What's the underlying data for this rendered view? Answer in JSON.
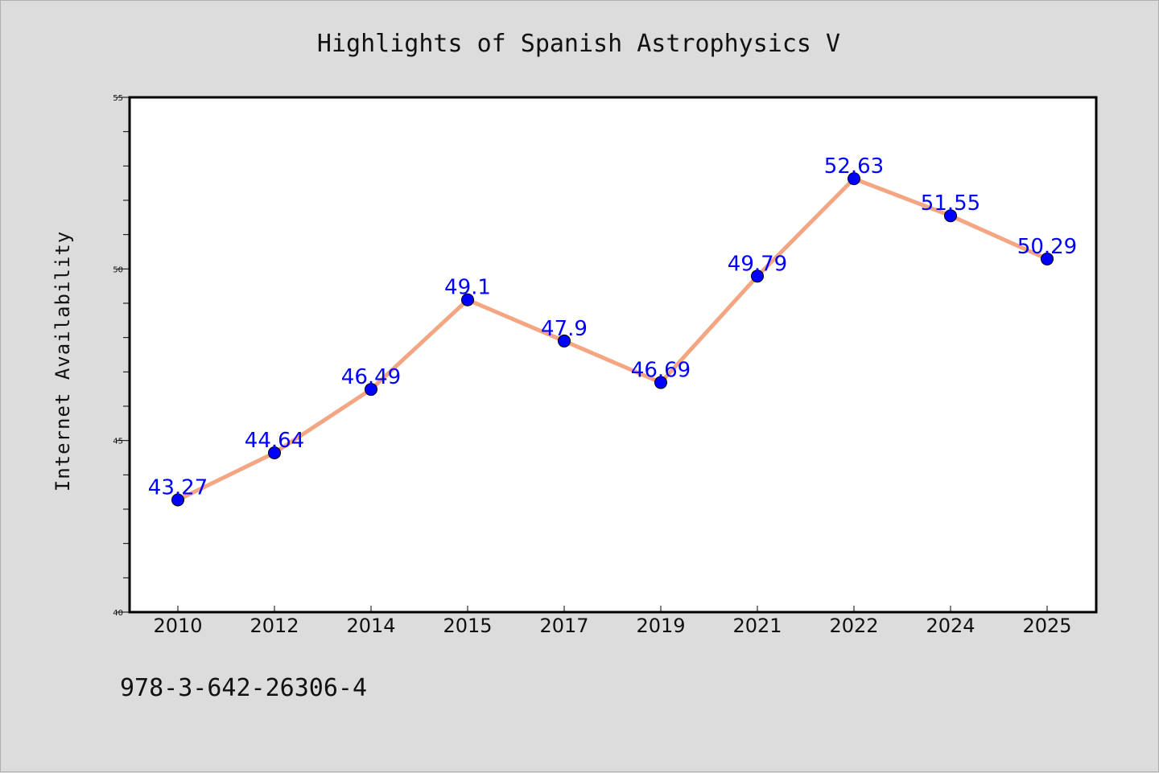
{
  "chart_data": {
    "type": "line",
    "title": "Highlights of Spanish Astrophysics V",
    "xlabel": "",
    "ylabel": "Internet Availability",
    "categories": [
      "2010",
      "2012",
      "2014",
      "2015",
      "2017",
      "2019",
      "2021",
      "2022",
      "2024",
      "2025"
    ],
    "series": [
      {
        "values": [
          43.27,
          44.64,
          46.49,
          49.1,
          47.9,
          46.69,
          49.79,
          52.63,
          51.55,
          50.29
        ],
        "data_labels": [
          "43.27",
          "44.64",
          "46.49",
          "49.1",
          "47.9",
          "46.69",
          "49.79",
          "52.63",
          "51.55",
          "50.29"
        ]
      }
    ],
    "ylim": [
      40,
      55
    ],
    "yticks": [
      "40",
      "45",
      "50",
      "55"
    ],
    "grid": false,
    "legend": "none",
    "colors": {
      "line": "#f4a582",
      "marker": "#0000ff",
      "data_label": "#0000ff",
      "background": "#dcdcdc",
      "plot_background": "#ffffff"
    }
  },
  "footer": {
    "isbn": "978-3-642-26306-4"
  }
}
